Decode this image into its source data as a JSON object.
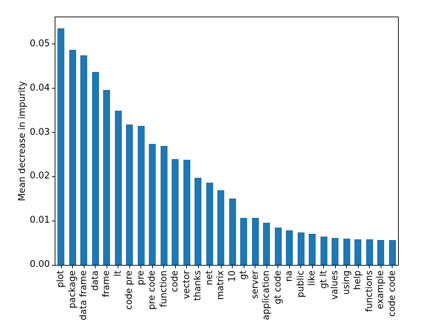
{
  "chart_data": {
    "type": "bar",
    "title": "",
    "xlabel": "",
    "ylabel": "Mean decrease in impurity",
    "categories": [
      "plot",
      "package",
      "data frame",
      "data",
      "frame",
      "lt",
      "code pre",
      "pre",
      "pre code",
      "function",
      "code",
      "vector",
      "thanks",
      "net",
      "matrix",
      "10",
      "gt",
      "server",
      "application",
      "gt code",
      "na",
      "public",
      "like",
      "gt lt",
      "values",
      "using",
      "help",
      "functions",
      "example",
      "code code"
    ],
    "values": [
      0.0536,
      0.0487,
      0.0475,
      0.0438,
      0.0397,
      0.0349,
      0.0318,
      0.0315,
      0.0275,
      0.0269,
      0.024,
      0.0238,
      0.0197,
      0.0187,
      0.017,
      0.015,
      0.0106,
      0.0107,
      0.0096,
      0.0085,
      0.0078,
      0.0074,
      0.007,
      0.0065,
      0.0061,
      0.006,
      0.0058,
      0.0058,
      0.0057,
      0.0056
    ],
    "ytick_labels": [
      "0.00",
      "0.01",
      "0.02",
      "0.03",
      "0.04",
      "0.05"
    ],
    "ytick_values": [
      0.0,
      0.01,
      0.02,
      0.03,
      0.04,
      0.05
    ],
    "ylim": [
      0,
      0.0561
    ],
    "bar_color": "#1f77b4",
    "grid": false,
    "legend": false
  }
}
